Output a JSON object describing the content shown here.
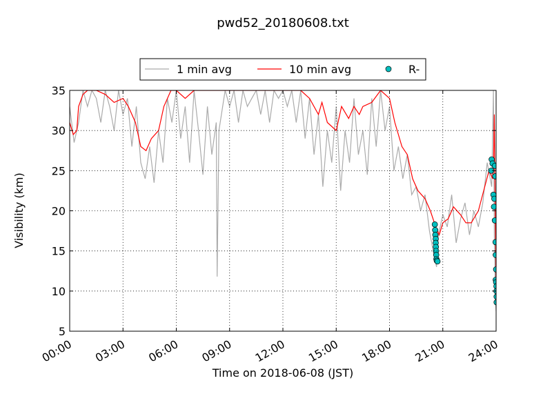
{
  "chart_data": {
    "type": "line",
    "title": "pwd52_20180608.txt",
    "x_label": "Time on 2018-06-08 (JST)",
    "y_label": "Visibility (km)",
    "xlim": [
      0,
      24
    ],
    "ylim": [
      5,
      35
    ],
    "xticks": [
      {
        "value": 0,
        "label": "00:00"
      },
      {
        "value": 3,
        "label": "03:00"
      },
      {
        "value": 6,
        "label": "06:00"
      },
      {
        "value": 9,
        "label": "09:00"
      },
      {
        "value": 12,
        "label": "12:00"
      },
      {
        "value": 15,
        "label": "15:00"
      },
      {
        "value": 18,
        "label": "18:00"
      },
      {
        "value": 21,
        "label": "21:00"
      },
      {
        "value": 24,
        "label": "24:00"
      }
    ],
    "yticks": [
      5,
      10,
      15,
      20,
      25,
      30,
      35
    ],
    "grid": true,
    "legend": "upper center",
    "series": [
      {
        "name": "1 min avg",
        "type": "line",
        "color": "#aaaaaa",
        "x": [
          0,
          0.25,
          0.5,
          0.75,
          1,
          1.25,
          1.5,
          1.75,
          2,
          2.25,
          2.5,
          2.75,
          3,
          3.25,
          3.5,
          3.75,
          4,
          4.25,
          4.5,
          4.75,
          5,
          5.25,
          5.5,
          5.75,
          6,
          6.25,
          6.5,
          6.75,
          7,
          7.25,
          7.5,
          7.75,
          8,
          8.25,
          8.3,
          8.4,
          8.75,
          9,
          9.25,
          9.5,
          9.75,
          10,
          10.25,
          10.5,
          10.75,
          11,
          11.25,
          11.5,
          11.75,
          12,
          12.25,
          12.5,
          12.75,
          13,
          13.25,
          13.5,
          13.75,
          14,
          14.25,
          14.5,
          14.75,
          15,
          15.25,
          15.5,
          15.75,
          16,
          16.25,
          16.5,
          16.75,
          17,
          17.25,
          17.5,
          17.75,
          18,
          18.25,
          18.5,
          18.75,
          19,
          19.25,
          19.5,
          19.75,
          20,
          20.25,
          20.5,
          20.65,
          20.75,
          21,
          21.25,
          21.5,
          21.75,
          22,
          22.25,
          22.5,
          22.75,
          23,
          23.25,
          23.5,
          23.75,
          23.85,
          23.9,
          23.95,
          24
        ],
        "values": [
          33,
          28.5,
          31,
          35,
          33,
          35,
          34,
          31,
          35,
          33,
          30,
          35,
          32,
          34,
          28,
          33,
          26,
          24,
          28,
          23.5,
          30,
          26,
          34,
          31,
          35,
          29,
          33,
          26,
          35,
          30,
          24.5,
          33,
          27,
          31,
          11.8,
          30,
          35,
          33,
          35,
          31,
          35,
          33,
          34,
          35,
          32,
          35,
          31,
          35,
          34,
          35,
          33,
          35,
          31,
          35,
          29,
          34,
          27,
          32,
          23,
          30,
          26,
          33,
          22.5,
          30,
          26,
          34,
          27,
          30,
          24.5,
          34,
          28,
          35,
          30,
          33,
          25,
          28,
          24,
          27,
          22,
          23,
          20,
          22,
          17.5,
          14.5,
          13,
          17,
          19.5,
          18,
          22,
          16,
          19,
          21,
          17,
          20,
          18,
          21,
          26,
          23,
          35,
          17,
          10,
          7.5
        ]
      },
      {
        "name": "10 min avg",
        "type": "line",
        "color": "#ff0000",
        "x": [
          0,
          0.2,
          0.4,
          0.5,
          0.75,
          1,
          1.5,
          2,
          2.5,
          3,
          3.3,
          3.7,
          4,
          4.3,
          4.6,
          5,
          5.3,
          5.7,
          6,
          6.5,
          7,
          7.5,
          8,
          9,
          10,
          11,
          12,
          13,
          13.5,
          14,
          14.2,
          14.5,
          15,
          15.3,
          15.7,
          16,
          16.3,
          16.5,
          17,
          17.5,
          18,
          18.3,
          18.7,
          19,
          19.3,
          19.6,
          20,
          20.3,
          20.6,
          20.8,
          21,
          21.3,
          21.6,
          22,
          22.3,
          22.6,
          23,
          23.3,
          23.6,
          23.8,
          23.85,
          23.9,
          23.95,
          24
        ],
        "values": [
          31,
          29.5,
          30,
          33,
          34.5,
          35,
          35,
          34.5,
          33.5,
          34,
          33,
          31,
          28,
          27.5,
          29,
          30,
          33,
          35,
          35,
          34,
          35,
          35,
          35,
          35,
          35,
          35,
          35,
          35,
          34,
          32,
          33.5,
          31,
          30,
          33,
          31.5,
          33,
          32,
          33,
          33.5,
          35,
          34,
          31,
          28,
          27,
          24,
          22.5,
          21.5,
          20,
          18,
          17,
          18.5,
          19,
          20.5,
          19.5,
          18.5,
          18.5,
          20,
          22.5,
          25,
          24,
          25.5,
          32,
          20,
          10
        ]
      },
      {
        "name": "R-",
        "type": "scatter",
        "color": "#00bfbf",
        "x": [
          20.55,
          20.57,
          20.58,
          20.6,
          20.6,
          20.61,
          20.62,
          20.63,
          20.64,
          20.66,
          20.7,
          23.72,
          23.75,
          23.8,
          23.85,
          23.88,
          23.9,
          23.93,
          23.95,
          23.93,
          23.97,
          23.98,
          24,
          23.98,
          24,
          24.02,
          24.02,
          24.03,
          24.03
        ],
        "values": [
          18.3,
          17.6,
          17,
          16.5,
          16,
          15.5,
          15,
          14.5,
          14,
          13.8,
          13.7,
          25,
          26.4,
          25.9,
          22,
          20.5,
          21.5,
          25.6,
          24.3,
          18.8,
          16.1,
          14.5,
          12.7,
          11.4,
          11.1,
          10.6,
          10,
          9.3,
          8.6
        ]
      }
    ]
  }
}
